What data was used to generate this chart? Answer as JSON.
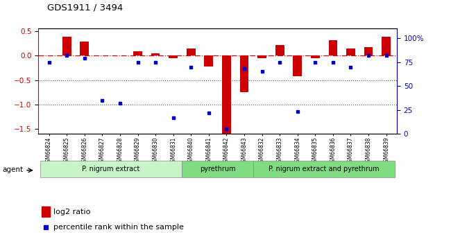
{
  "title": "GDS1911 / 3494",
  "samples": [
    "GSM66824",
    "GSM66825",
    "GSM66826",
    "GSM66827",
    "GSM66828",
    "GSM66829",
    "GSM66830",
    "GSM66831",
    "GSM66840",
    "GSM66841",
    "GSM66842",
    "GSM66843",
    "GSM66832",
    "GSM66833",
    "GSM66834",
    "GSM66835",
    "GSM66836",
    "GSM66837",
    "GSM66838",
    "GSM66839"
  ],
  "log2_ratio": [
    0.0,
    0.38,
    0.28,
    0.0,
    0.0,
    0.09,
    0.04,
    -0.06,
    0.15,
    -0.22,
    -1.6,
    -0.75,
    -0.05,
    0.22,
    -0.42,
    -0.05,
    0.32,
    0.14,
    0.17,
    0.38
  ],
  "pct_rank": [
    75,
    82,
    79,
    35,
    32,
    75,
    75,
    17,
    70,
    22,
    5,
    68,
    65,
    75,
    23,
    75,
    75,
    70,
    82,
    82
  ],
  "groups": [
    {
      "label": "P. nigrum extract",
      "start": 0,
      "end": 8,
      "color": "#c8f5c8"
    },
    {
      "label": "pyrethrum",
      "start": 8,
      "end": 12,
      "color": "#80dc80"
    },
    {
      "label": "P. nigrum extract and pyrethrum",
      "start": 12,
      "end": 20,
      "color": "#80dc80"
    }
  ],
  "ylim_left": [
    -1.6,
    0.55
  ],
  "pct_ylim": [
    0,
    110
  ],
  "bar_color_red": "#cc0000",
  "bar_color_blue": "#0000cc",
  "zero_line_color": "#cc0000",
  "dotted_line_color": "#555555",
  "background_color": "#ffffff",
  "agent_label": "agent",
  "legend_red": "log2 ratio",
  "legend_blue": "percentile rank within the sample",
  "left_yticks": [
    0.5,
    0.0,
    -0.5,
    -1.0,
    -1.5
  ],
  "right_yticks": [
    0,
    25,
    50,
    75,
    100
  ],
  "right_yticklabels": [
    "0",
    "25",
    "50",
    "75",
    "100%"
  ]
}
